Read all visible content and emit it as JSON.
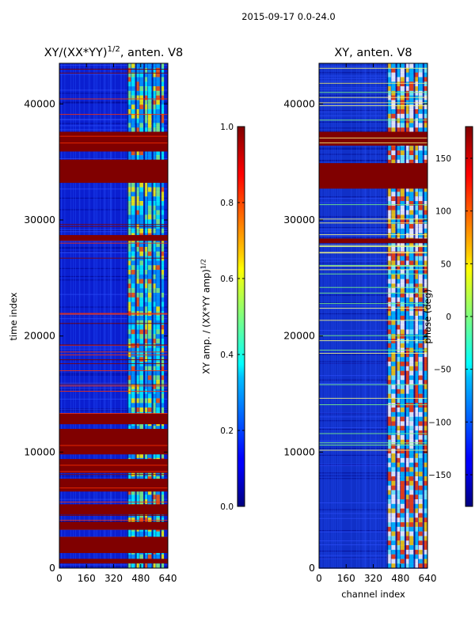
{
  "suptitle": "2015-09-17 0.0-24.0",
  "chart_data": [
    {
      "type": "heatmap",
      "title_prefix": "XY/(XX*YY)",
      "title_sup": "1/2",
      "title_suffix": ", anten. V8",
      "xlabel": "",
      "ylabel": "time index",
      "xlim": [
        0,
        640
      ],
      "ylim": [
        0,
        43500
      ],
      "xticks": [
        0,
        160,
        320,
        480,
        640
      ],
      "yticks": [
        0,
        10000,
        20000,
        30000,
        40000
      ],
      "colorbar": {
        "label_prefix": "XY amp. / (XX*YY amp)",
        "label_sup": "1/2",
        "range": [
          0.0,
          1.0
        ],
        "ticks": [
          "0.0",
          "0.2",
          "0.4",
          "0.6",
          "0.8",
          "1.0"
        ],
        "tick_values": [
          0.0,
          0.2,
          0.4,
          0.6,
          0.8,
          1.0
        ]
      },
      "saturated_time_bands": [
        [
          37600,
          35900
        ],
        [
          35200,
          33200
        ],
        [
          28700,
          28200
        ],
        [
          13300,
          12400
        ],
        [
          12000,
          9800
        ],
        [
          9400,
          8200
        ],
        [
          7700,
          6600
        ],
        [
          5500,
          4600
        ],
        [
          4000,
          3300
        ],
        [
          2700,
          1300
        ],
        [
          800,
          400
        ]
      ],
      "bright_channel_range": [
        400,
        620
      ]
    },
    {
      "type": "heatmap",
      "title": "XY, anten. V8",
      "xlabel": "channel index",
      "ylabel": "",
      "xlim": [
        0,
        640
      ],
      "ylim": [
        0,
        43500
      ],
      "xticks": [
        0,
        160,
        320,
        480,
        640
      ],
      "yticks": [
        0,
        10000,
        20000,
        30000,
        40000
      ],
      "colorbar": {
        "label": "phase (deg)",
        "range": [
          -180,
          180
        ],
        "ticks": [
          "−150",
          "−100",
          "−50",
          "0",
          "50",
          "100",
          "150"
        ],
        "tick_values": [
          -150,
          -100,
          -50,
          0,
          50,
          100,
          150
        ]
      },
      "saturated_time_bands": [
        [
          37600,
          36400
        ],
        [
          34900,
          32700
        ],
        [
          28400,
          28000
        ]
      ],
      "bright_channel_range": [
        400,
        640
      ]
    }
  ],
  "colors": {
    "jet_dark_red": "#800000",
    "jet_dark_blue": "#00007f",
    "jet_blue": "#0000ff"
  }
}
